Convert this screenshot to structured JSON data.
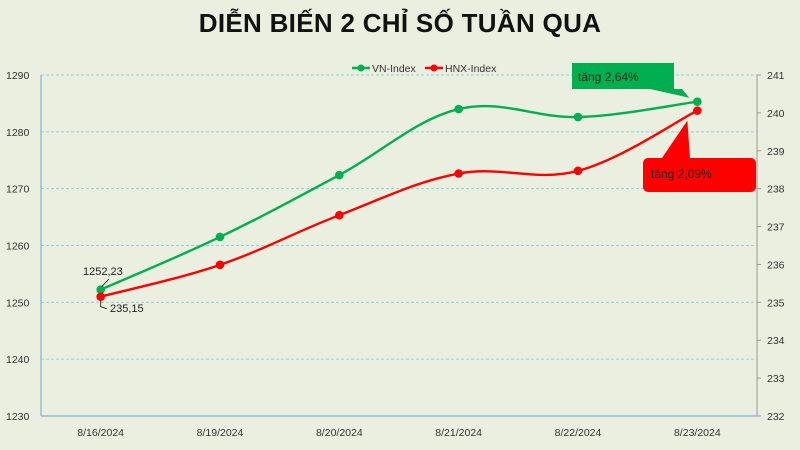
{
  "title": "DIỄN BIẾN 2 CHỈ SỐ TUẦN QUA",
  "legend": [
    {
      "name": "VN-Index",
      "color": "#00b050"
    },
    {
      "name": "HNX-Index",
      "color": "#ff0000"
    }
  ],
  "annotations": {
    "vn": {
      "text": "tăng 2,64%",
      "color": "#00b050"
    },
    "hnx": {
      "text": "tăng 2,09%",
      "color": "#ff0000"
    }
  },
  "data_labels": {
    "vn_first": "1252,23",
    "hnx_first": "235,15"
  },
  "chart_data": {
    "type": "line",
    "title": "DIỄN BIẾN 2 CHỈ SỐ TUẦN QUA",
    "categories": [
      "8/16/2024",
      "8/19/2024",
      "8/20/2024",
      "8/21/2024",
      "8/22/2024",
      "8/23/2024"
    ],
    "series": [
      {
        "name": "VN-Index",
        "axis": "left",
        "color": "#00b050",
        "values": [
          1252.23,
          1261.5,
          1272.4,
          1284.0,
          1282.6,
          1285.3
        ]
      },
      {
        "name": "HNX-Index",
        "axis": "right",
        "color": "#ff0000",
        "values": [
          235.15,
          235.99,
          237.3,
          238.4,
          238.47,
          240.06
        ]
      }
    ],
    "left_axis": {
      "min": 1230,
      "max": 1290,
      "step": 10,
      "ticks": [
        1230,
        1240,
        1250,
        1260,
        1270,
        1280,
        1290
      ]
    },
    "right_axis": {
      "min": 232,
      "max": 241,
      "step": 1,
      "ticks": [
        232,
        233,
        234,
        235,
        236,
        237,
        238,
        239,
        240,
        241
      ]
    },
    "xlabel": "",
    "ylabel": "",
    "grid": true,
    "legend_position": "top",
    "annotations": [
      "tăng 2,64%",
      "tăng 2,09%",
      "1252,23",
      "235,15"
    ]
  }
}
